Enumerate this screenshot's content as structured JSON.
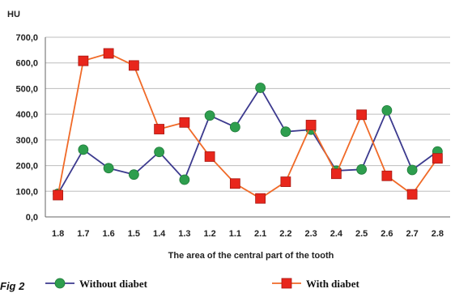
{
  "chart_data": {
    "type": "line",
    "ylabel": "HU",
    "xlabel": "The area of the central part of the tooth",
    "ylim": [
      0,
      700
    ],
    "yticks": [
      "0,0",
      "100,0",
      "200,0",
      "300,0",
      "400,0",
      "500,0",
      "600,0",
      "700,0"
    ],
    "categories": [
      "1.8",
      "1.7",
      "1.6",
      "1.5",
      "1.4",
      "1.3",
      "1.2",
      "1.1",
      "2.1",
      "2.2",
      "2.3",
      "2.4",
      "2.5",
      "2.6",
      "2.7",
      "2.8"
    ],
    "grid": true,
    "legend_position": "bottom",
    "series": [
      {
        "name": "Without diabet",
        "marker": "circle",
        "line_color": "#3c3a8e",
        "marker_color": "#2e9e4e",
        "values": [
          90,
          262,
          190,
          165,
          253,
          145,
          395,
          350,
          503,
          332,
          340,
          180,
          185,
          415,
          183,
          255
        ]
      },
      {
        "name": "With diabet",
        "marker": "square",
        "line_color": "#f06a28",
        "marker_color": "#e8261c",
        "values": [
          85,
          608,
          637,
          590,
          342,
          368,
          235,
          130,
          72,
          137,
          358,
          168,
          398,
          160,
          88,
          228
        ]
      }
    ]
  },
  "caption": "Fig 2"
}
